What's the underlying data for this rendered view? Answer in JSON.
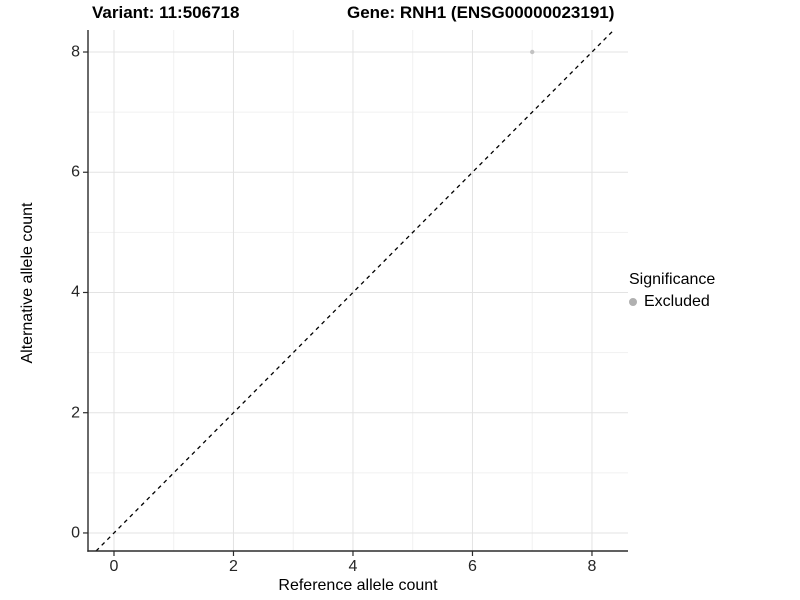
{
  "header": {
    "variant": "Variant: 11:506718",
    "gene": "Gene: RNH1 (ENSG00000023191)"
  },
  "legend": {
    "title": "Significance",
    "items": [
      {
        "label": "Excluded",
        "color": "#b0b0b0"
      }
    ]
  },
  "colors": {
    "background": "#ffffff",
    "grid_major": "#e3e3e3",
    "grid_minor": "#f1f1f1",
    "axis_line": "#2b2b2b",
    "tick_mark": "#2b2b2b",
    "tick_label": "#262626",
    "point": "#c2c2c2",
    "dash_line": "#000000"
  },
  "chart_data": {
    "type": "scatter",
    "title": "Variant: 11:506718    Gene: RNH1 (ENSG00000023191)",
    "xlabel": "Reference allele count",
    "ylabel": "Alternative allele count",
    "xlim": [
      -0.435,
      8.603
    ],
    "ylim": [
      -0.3,
      8.366
    ],
    "x_ticks": [
      0,
      2,
      4,
      6,
      8
    ],
    "x_minor_ticks": [
      1,
      3,
      5,
      7
    ],
    "y_ticks": [
      0,
      2,
      4,
      6,
      8
    ],
    "y_minor_ticks": [
      1,
      3,
      5,
      7
    ],
    "grid": true,
    "legend_position": "right",
    "series": [
      {
        "name": "Excluded",
        "color": "#c2c2c2",
        "marker": "circle",
        "marker_diameter_px": 4.4,
        "points": [
          {
            "x": 7,
            "y": 8
          }
        ]
      }
    ],
    "reference_line": {
      "style": "dashed",
      "color": "#000000",
      "x1": -0.3,
      "y1": -0.3,
      "x2": 8.366,
      "y2": 8.366
    }
  }
}
